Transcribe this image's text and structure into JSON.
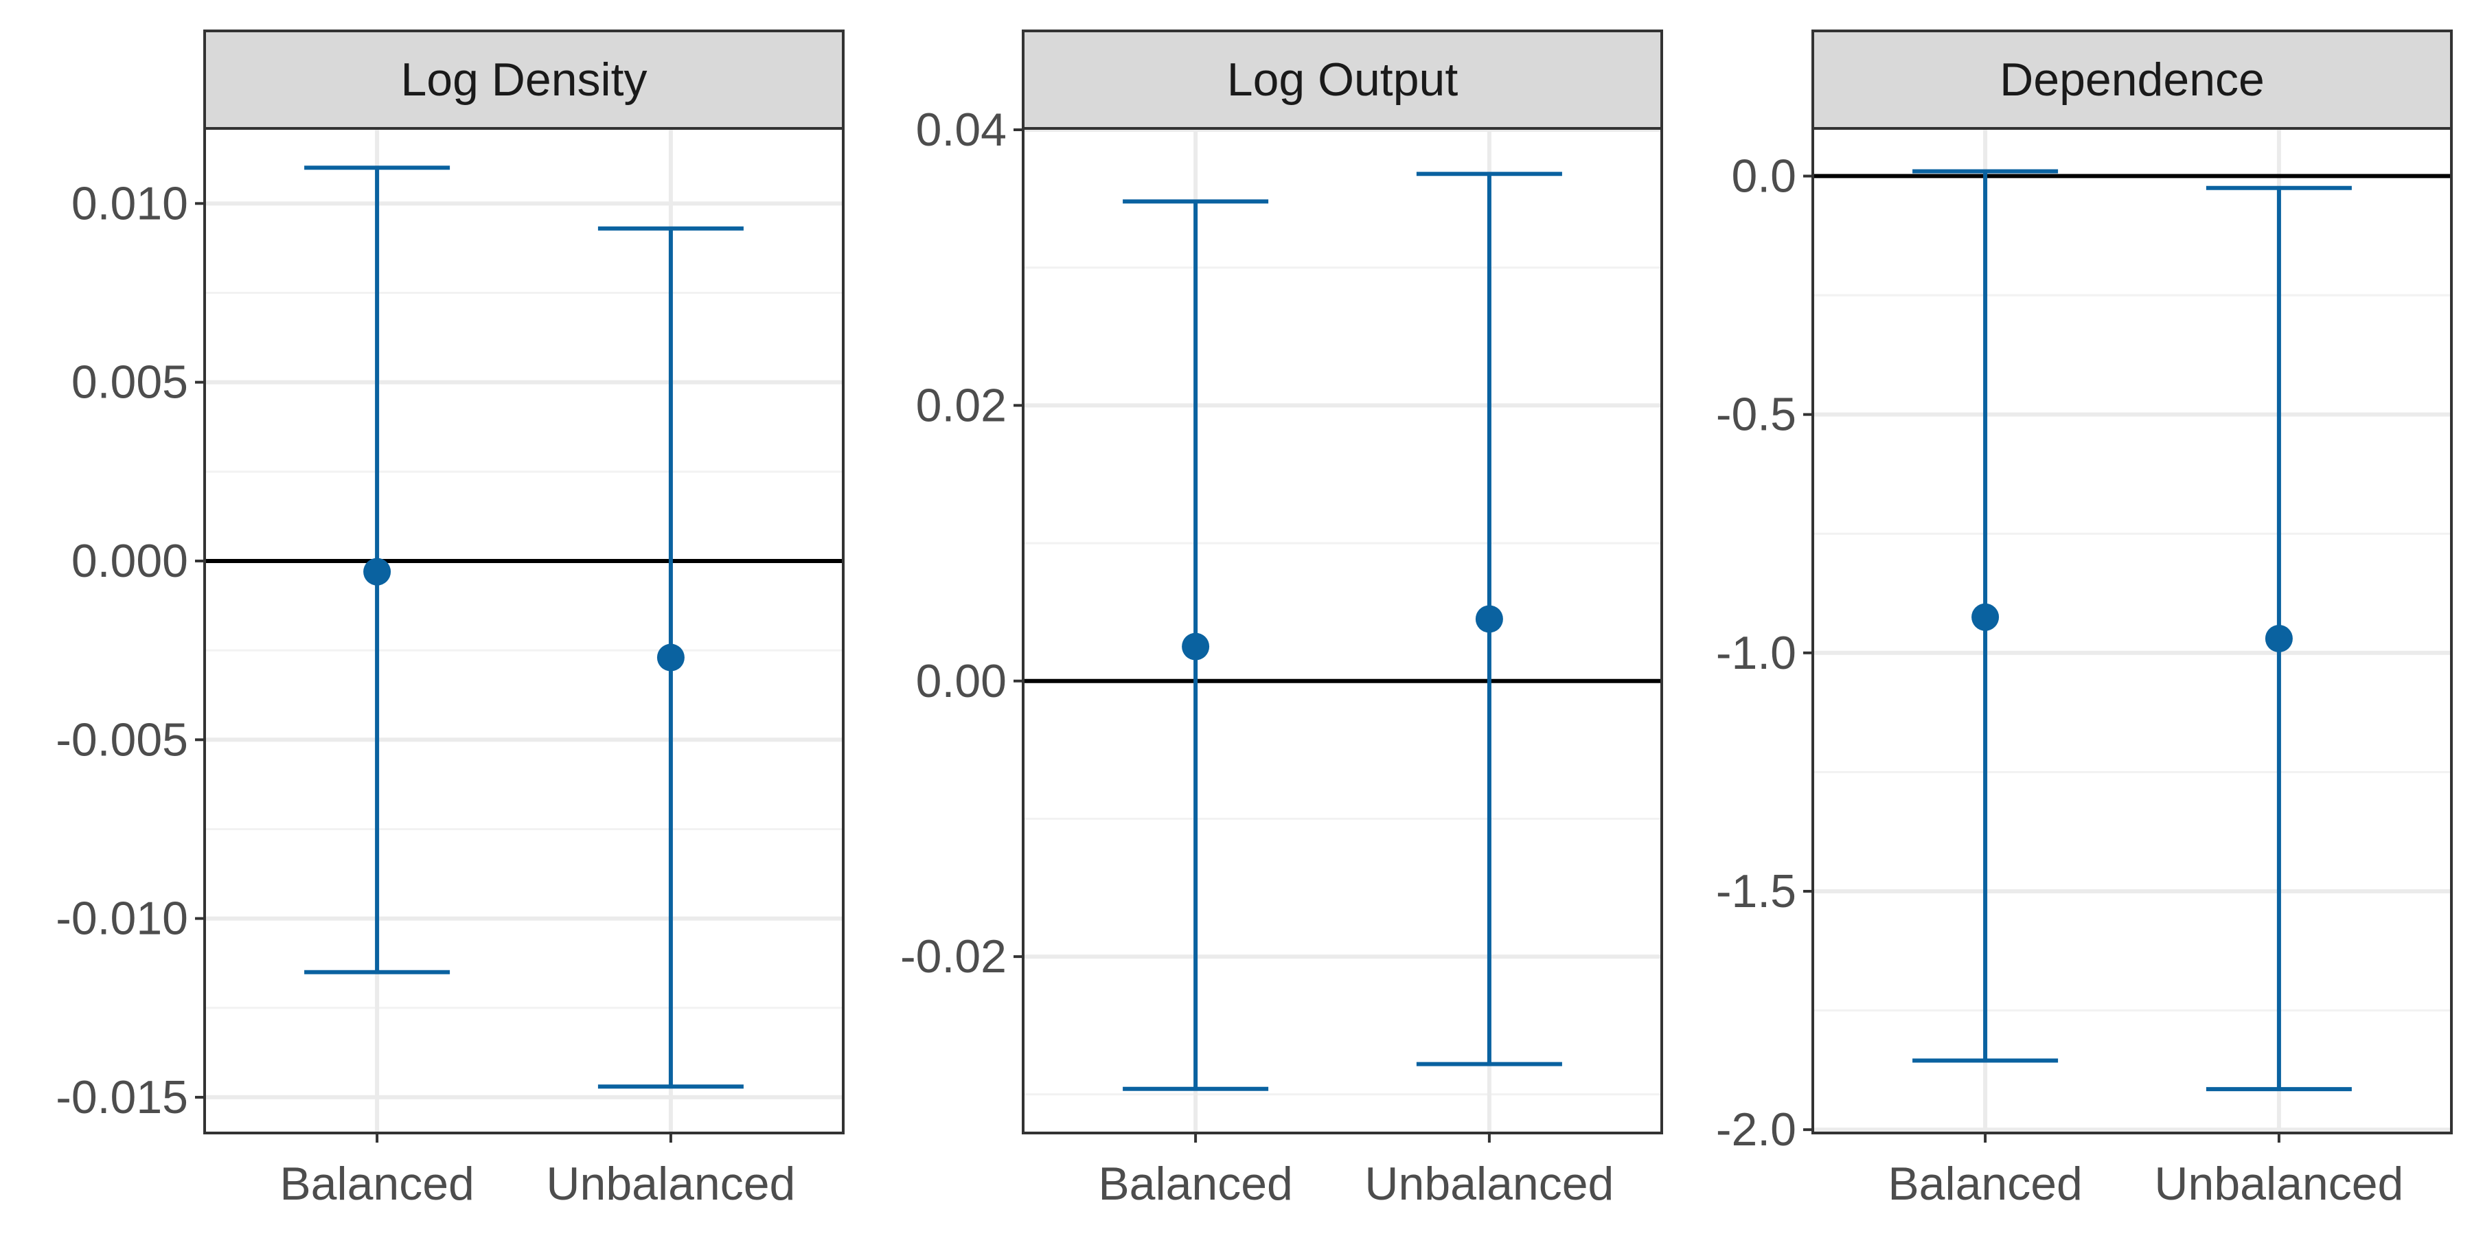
{
  "figure": {
    "colors": {
      "interval": "#0a62a0",
      "zero_line": "#000000",
      "strip_background": "#d9d9d9",
      "panel_border": "#333333",
      "grid_major": "#ebebeb",
      "grid_minor": "#f2f2f2",
      "tick_text": "#4d4d4d"
    }
  },
  "chart_data": [
    {
      "type": "errorbar",
      "title": "Log Density",
      "xlabel": "",
      "ylabel": "",
      "categories": [
        "Balanced",
        "Unbalanced"
      ],
      "estimates": [
        -0.0003,
        -0.0027
      ],
      "lower": [
        -0.0115,
        -0.0147
      ],
      "upper": [
        0.011,
        0.0093
      ],
      "ylim": [
        -0.016,
        0.0121
      ],
      "yticks": [
        0.01,
        0.005,
        0.0,
        -0.005,
        -0.01,
        -0.015
      ],
      "ytick_labels": [
        "0.010",
        "0.005",
        "0.000",
        "-0.005",
        "-0.010",
        "-0.015"
      ],
      "reference_line": 0,
      "grid": true
    },
    {
      "type": "errorbar",
      "title": "Log Output",
      "xlabel": "",
      "ylabel": "",
      "categories": [
        "Balanced",
        "Unbalanced"
      ],
      "estimates": [
        0.0025,
        0.0045
      ],
      "lower": [
        -0.0296,
        -0.0278
      ],
      "upper": [
        0.0348,
        0.0368
      ],
      "ylim": [
        -0.0328,
        0.0401
      ],
      "yticks": [
        0.04,
        0.02,
        0.0,
        -0.02
      ],
      "ytick_labels": [
        "0.04",
        "0.02",
        "0.00",
        "-0.02"
      ],
      "reference_line": 0,
      "grid": true
    },
    {
      "type": "errorbar",
      "title": "Dependence",
      "xlabel": "",
      "ylabel": "",
      "categories": [
        "Balanced",
        "Unbalanced"
      ],
      "estimates": [
        -0.925,
        -0.97
      ],
      "lower": [
        -1.855,
        -1.915
      ],
      "upper": [
        0.01,
        -0.025
      ],
      "ylim": [
        -2.007,
        0.1
      ],
      "yticks": [
        0.0,
        -0.5,
        -1.0,
        -1.5,
        -2.0
      ],
      "ytick_labels": [
        "0.0",
        "-0.5",
        "-1.0",
        "-1.5",
        "-2.0"
      ],
      "reference_line": 0,
      "grid": true
    }
  ]
}
